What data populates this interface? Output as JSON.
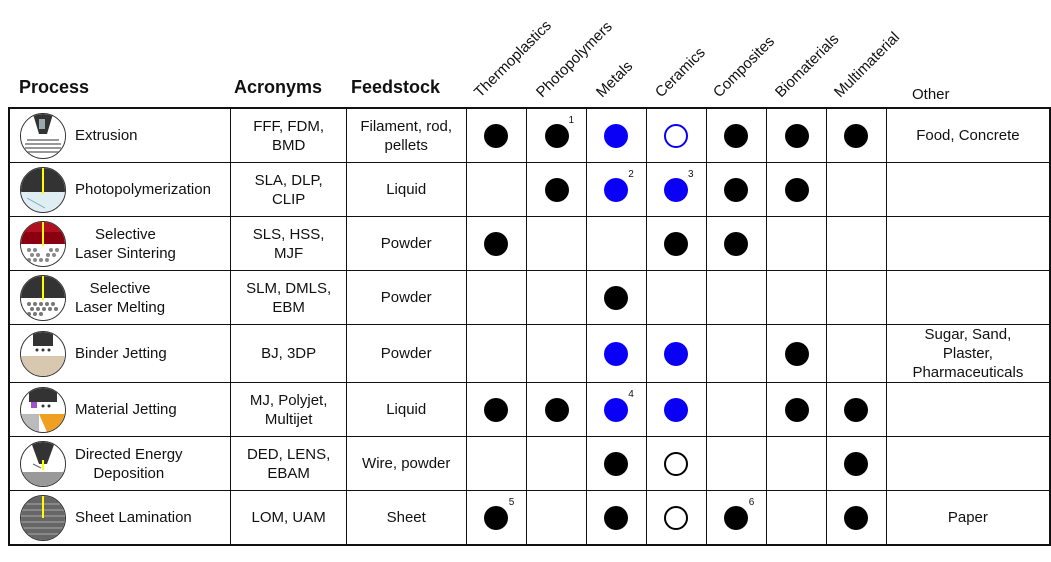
{
  "headers": {
    "process": "Process",
    "acronyms": "Acronyms",
    "feedstock": "Feedstock",
    "materials": [
      "Thermoplastics",
      "Photopolymers",
      "Metals",
      "Ceramics",
      "Composites",
      "Biomaterials",
      "Multimaterial"
    ],
    "other": "Other"
  },
  "colors": {
    "blue_dot": "#0a00f5",
    "black_dot": "#000000"
  },
  "rows": [
    {
      "process_line1": "Extrusion",
      "process_line2": "",
      "acronyms_line1": "FFF, FDM,",
      "acronyms_line2": "BMD",
      "feedstock_line1": "Filament, rod,",
      "feedstock_line2": "pellets",
      "marks": [
        "black",
        "black",
        "blue",
        "open-blue",
        "black",
        "black",
        "black"
      ],
      "footnotes": [
        "",
        "1",
        "",
        "",
        "",
        "",
        ""
      ],
      "other_line1": "Food, Concrete",
      "other_line2": "",
      "other_line3": "",
      "icon": "extrusion-icon"
    },
    {
      "process_line1": "Photopolymerization",
      "process_line2": "",
      "acronyms_line1": "SLA, DLP,",
      "acronyms_line2": "CLIP",
      "feedstock_line1": "Liquid",
      "feedstock_line2": "",
      "marks": [
        "",
        "black",
        "blue",
        "blue",
        "black",
        "black",
        ""
      ],
      "footnotes": [
        "",
        "",
        "2",
        "3",
        "",
        "",
        ""
      ],
      "other_line1": "",
      "other_line2": "",
      "other_line3": "",
      "icon": "photopolymerization-icon"
    },
    {
      "process_line1": "Selective",
      "process_line2": "Laser Sintering",
      "acronyms_line1": "SLS, HSS,",
      "acronyms_line2": "MJF",
      "feedstock_line1": "Powder",
      "feedstock_line2": "",
      "marks": [
        "black",
        "",
        "",
        "black",
        "black",
        "",
        ""
      ],
      "footnotes": [
        "",
        "",
        "",
        "",
        "",
        "",
        ""
      ],
      "other_line1": "",
      "other_line2": "",
      "other_line3": "",
      "icon": "laser-sintering-icon"
    },
    {
      "process_line1": "Selective",
      "process_line2": "Laser Melting",
      "acronyms_line1": "SLM, DMLS,",
      "acronyms_line2": "EBM",
      "feedstock_line1": "Powder",
      "feedstock_line2": "",
      "marks": [
        "",
        "",
        "black",
        "",
        "",
        "",
        ""
      ],
      "footnotes": [
        "",
        "",
        "",
        "",
        "",
        "",
        ""
      ],
      "other_line1": "",
      "other_line2": "",
      "other_line3": "",
      "icon": "laser-melting-icon"
    },
    {
      "process_line1": "Binder Jetting",
      "process_line2": "",
      "acronyms_line1": "BJ, 3DP",
      "acronyms_line2": "",
      "feedstock_line1": "Powder",
      "feedstock_line2": "",
      "marks": [
        "",
        "",
        "blue",
        "blue",
        "",
        "black",
        ""
      ],
      "footnotes": [
        "",
        "",
        "",
        "",
        "",
        "",
        ""
      ],
      "other_line1": "Sugar, Sand,",
      "other_line2": "Plaster,",
      "other_line3": "Pharmaceuticals",
      "icon": "binder-jetting-icon"
    },
    {
      "process_line1": "Material Jetting",
      "process_line2": "",
      "acronyms_line1": "MJ, Polyjet,",
      "acronyms_line2": "Multijet",
      "feedstock_line1": "Liquid",
      "feedstock_line2": "",
      "marks": [
        "black",
        "black",
        "blue",
        "blue",
        "",
        "black",
        "black"
      ],
      "footnotes": [
        "",
        "",
        "4",
        "",
        "",
        "",
        ""
      ],
      "other_line1": "",
      "other_line2": "",
      "other_line3": "",
      "icon": "material-jetting-icon"
    },
    {
      "process_line1": "Directed Energy",
      "process_line2": "Deposition",
      "acronyms_line1": "DED, LENS,",
      "acronyms_line2": "EBAM",
      "feedstock_line1": "Wire, powder",
      "feedstock_line2": "",
      "marks": [
        "",
        "",
        "black",
        "open-black",
        "",
        "",
        "black"
      ],
      "footnotes": [
        "",
        "",
        "",
        "",
        "",
        "",
        ""
      ],
      "other_line1": "",
      "other_line2": "",
      "other_line3": "",
      "icon": "directed-energy-icon"
    },
    {
      "process_line1": "Sheet Lamination",
      "process_line2": "",
      "acronyms_line1": "LOM, UAM",
      "acronyms_line2": "",
      "feedstock_line1": "Sheet",
      "feedstock_line2": "",
      "marks": [
        "black",
        "",
        "black",
        "open-black",
        "black",
        "",
        "black"
      ],
      "footnotes": [
        "5",
        "",
        "",
        "",
        "6",
        "",
        ""
      ],
      "other_line1": "Paper",
      "other_line2": "",
      "other_line3": "",
      "icon": "sheet-lamination-icon"
    }
  ]
}
